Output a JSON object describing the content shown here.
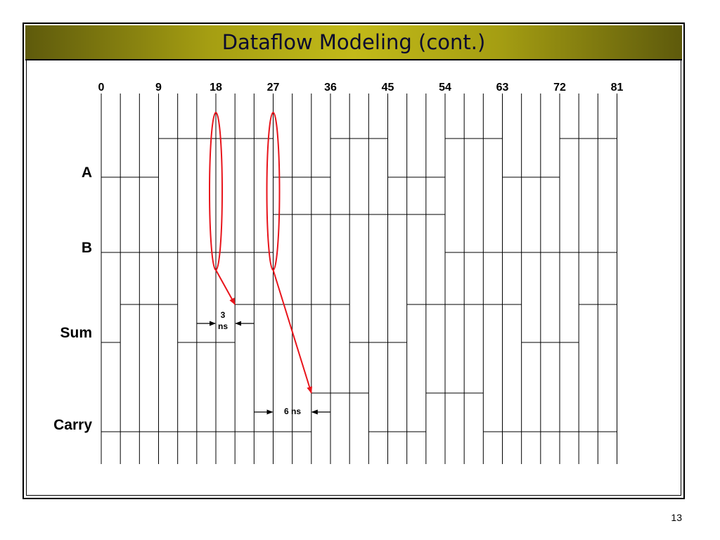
{
  "slide": {
    "title": "Dataflow Modeling (cont.)",
    "page_number": "13"
  },
  "timing": {
    "time_ticks": [
      "0",
      "9",
      "18",
      "27",
      "36",
      "45",
      "54",
      "63",
      "72",
      "81"
    ],
    "time_step_ns": 3,
    "time_end_ns": 81,
    "signals": [
      {
        "name": "A",
        "transitions_ns": [
          0,
          9,
          27,
          36,
          45,
          54,
          63,
          72,
          81
        ],
        "initial": 0
      },
      {
        "name": "B",
        "transitions_ns": [
          0,
          27,
          54,
          81
        ],
        "initial": 0
      },
      {
        "name": "Sum",
        "transitions_ns": [
          0,
          3,
          12,
          21,
          39,
          48,
          66,
          75,
          81
        ],
        "initial": 0
      },
      {
        "name": "Carry",
        "transitions_ns": [
          0,
          33,
          42,
          51,
          60,
          81
        ],
        "initial": 0
      }
    ],
    "annotations": {
      "sum_delay_value": "3",
      "sum_delay_unit": "ns",
      "carry_delay_label": "6 ns"
    },
    "highlight_color": "#e8141b"
  }
}
